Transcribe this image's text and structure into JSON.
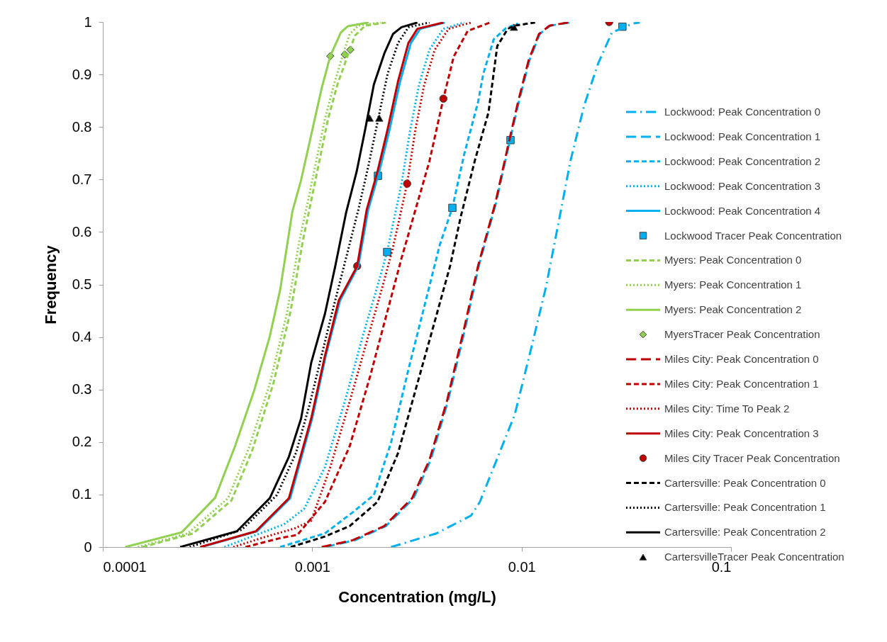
{
  "chart_data": {
    "type": "line",
    "xlabel": "Concentration (mg/L)",
    "ylabel": "Frequency",
    "log": "x",
    "xlim": [
      0.0001,
      0.1
    ],
    "xticks": [
      0.0001,
      0.001,
      0.01,
      0.1
    ],
    "ylim": [
      0,
      1
    ],
    "yticks": [
      0,
      0.1,
      0.2,
      0.3,
      0.4,
      0.5,
      0.6,
      0.7,
      0.8,
      0.9,
      1
    ],
    "grid": false,
    "legend": "right",
    "series": [
      {
        "name": "Lockwood: Peak Concentration 0",
        "line_style": "dashdot",
        "color": "#00b0f0",
        "x": [
          0.00238,
          0.00392,
          0.00574,
          0.00632,
          0.00736,
          0.00927,
          0.0112,
          0.0131,
          0.0152,
          0.0171,
          0.0199,
          0.0232,
          0.027,
          0.0297,
          0.034,
          0.0367
        ],
        "values": [
          0,
          0.026,
          0.06,
          0.086,
          0.152,
          0.252,
          0.384,
          0.497,
          0.629,
          0.735,
          0.841,
          0.921,
          0.98,
          0.987,
          0.997,
          0.999
        ]
      },
      {
        "name": "Lockwood: Peak Concentration 1",
        "line_style": "longdash",
        "color": "#00b0f0",
        "x": [
          0.00115,
          0.0016,
          0.00225,
          0.00305,
          0.00368,
          0.00445,
          0.00538,
          0.00625,
          0.00755,
          0.00865,
          0.0097,
          0.0109,
          0.0122,
          0.0137,
          0.0169
        ],
        "values": [
          0,
          0.013,
          0.04,
          0.093,
          0.166,
          0.278,
          0.417,
          0.536,
          0.656,
          0.762,
          0.848,
          0.927,
          0.977,
          0.993,
          0.999
        ]
      },
      {
        "name": "Lockwood: Peak Concentration 2",
        "line_style": "dashed",
        "color": "#00b0f0",
        "x": [
          0.000703,
          0.00115,
          0.00156,
          0.00197,
          0.00238,
          0.00288,
          0.00349,
          0.00407,
          0.00467,
          0.00532,
          0.0062,
          0.00656,
          0.00736,
          0.00841,
          0.00962
        ],
        "values": [
          0,
          0.026,
          0.066,
          0.099,
          0.199,
          0.338,
          0.47,
          0.576,
          0.646,
          0.748,
          0.848,
          0.901,
          0.967,
          0.988,
          0.997
        ]
      },
      {
        "name": "Lockwood: Peak Concentration 3",
        "line_style": "dotted",
        "color": "#00b0f0",
        "x": [
          0.000381,
          0.000538,
          0.000731,
          0.000916,
          0.00115,
          0.00145,
          0.00175,
          0.00205,
          0.00228,
          0.00267,
          0.00294,
          0.00324,
          0.00363,
          0.00423,
          0.00532
        ],
        "values": [
          0,
          0.023,
          0.043,
          0.073,
          0.152,
          0.285,
          0.404,
          0.497,
          0.562,
          0.692,
          0.795,
          0.881,
          0.947,
          0.987,
          0.999
        ]
      },
      {
        "name": "Lockwood: Peak Concentration 4",
        "line_style": "solid",
        "color": "#00b0f0",
        "x": [
          0.000295,
          0.000545,
          0.000785,
          0.001,
          0.00116,
          0.00136,
          0.00166,
          0.00185,
          0.00209,
          0.00234,
          0.00263,
          0.00296,
          0.00328,
          0.0043
        ],
        "values": [
          0,
          0.03,
          0.093,
          0.245,
          0.364,
          0.47,
          0.535,
          0.642,
          0.715,
          0.795,
          0.887,
          0.96,
          0.987,
          0.999
        ]
      },
      {
        "name": "Lockwood Tracer Peak Concentration",
        "type": "scatter",
        "marker": "square",
        "color": "#00b0f0",
        "x": [
          0.00206,
          0.00228,
          0.00467,
          0.00885,
          0.0303
        ],
        "values": [
          0.707,
          0.562,
          0.646,
          0.775,
          0.991
        ]
      },
      {
        "name": "Myers: Peak Concentration 0",
        "line_style": "dashed",
        "color": "#92d050",
        "x": [
          0.000155,
          0.00027,
          0.000412,
          0.000518,
          0.000652,
          0.000789,
          0.000902,
          0.001,
          0.00119,
          0.00132,
          0.00149,
          0.0016,
          0.00179,
          0.00225
        ],
        "values": [
          0,
          0.026,
          0.089,
          0.185,
          0.311,
          0.45,
          0.583,
          0.669,
          0.815,
          0.881,
          0.94,
          0.974,
          0.993,
          0.999
        ]
      },
      {
        "name": "Myers: Peak Concentration 1",
        "line_style": "dotted",
        "color": "#92d050",
        "x": [
          0.000147,
          0.000255,
          0.000396,
          0.000499,
          0.000627,
          0.000759,
          0.000868,
          0.000973,
          0.00115,
          0.00127,
          0.0014,
          0.00151,
          0.00166,
          0.00212
        ],
        "values": [
          0,
          0.026,
          0.093,
          0.189,
          0.311,
          0.447,
          0.583,
          0.675,
          0.815,
          0.881,
          0.937,
          0.977,
          0.993,
          0.999
        ]
      },
      {
        "name": "Myers: Peak Concentration 2",
        "line_style": "solid",
        "color": "#92d050",
        "x": [
          0.000128,
          0.000238,
          0.000344,
          0.000428,
          0.000528,
          0.000627,
          0.000703,
          0.000804,
          0.000885,
          0.000993,
          0.00111,
          0.00122,
          0.00137,
          0.00148,
          0.00186
        ],
        "values": [
          0,
          0.028,
          0.094,
          0.192,
          0.298,
          0.401,
          0.49,
          0.639,
          0.699,
          0.788,
          0.874,
          0.935,
          0.98,
          0.992,
          0.999
        ]
      },
      {
        "name": "MyersTracer Peak Concentration",
        "type": "scatter",
        "marker": "diamond",
        "color": "#92d050",
        "x": [
          0.00122,
          0.00143,
          0.00152
        ],
        "values": [
          0.935,
          0.938,
          0.947
        ]
      },
      {
        "name": "Miles City: Peak Concentration 0",
        "line_style": "longdash",
        "color": "#c00000",
        "x": [
          0.00111,
          0.00156,
          0.00221,
          0.003,
          0.00363,
          0.0044,
          0.00532,
          0.0062,
          0.0075,
          0.00859,
          0.00962,
          0.0108,
          0.0121,
          0.0136,
          0.0167
        ],
        "values": [
          0,
          0.013,
          0.04,
          0.093,
          0.166,
          0.278,
          0.417,
          0.536,
          0.656,
          0.762,
          0.848,
          0.927,
          0.977,
          0.993,
          0.999
        ]
      },
      {
        "name": "Miles City: Peak Concentration 1",
        "line_style": "dashed",
        "color": "#c00000",
        "x": [
          0.00048,
          0.000703,
          0.000849,
          0.00115,
          0.00151,
          0.00189,
          0.00229,
          0.00267,
          0.00311,
          0.00363,
          0.00423,
          0.00474,
          0.00553,
          0.00708
        ],
        "values": [
          0,
          0.017,
          0.023,
          0.086,
          0.192,
          0.325,
          0.45,
          0.55,
          0.642,
          0.735,
          0.854,
          0.934,
          0.983,
          0.999
        ]
      },
      {
        "name": "Miles City: Time To Peak 2",
        "line_style": "dotted",
        "color": "#c00000",
        "x": [
          0.00042,
          0.000604,
          0.000819,
          0.000989,
          0.00122,
          0.00153,
          0.00186,
          0.00217,
          0.00243,
          0.00284,
          0.00311,
          0.00343,
          0.00385,
          0.00448,
          0.00574
        ],
        "values": [
          0,
          0.02,
          0.035,
          0.05,
          0.152,
          0.285,
          0.404,
          0.497,
          0.57,
          0.692,
          0.795,
          0.881,
          0.947,
          0.987,
          0.999
        ]
      },
      {
        "name": "Miles City: Peak Concentration 3",
        "line_style": "solid",
        "color": "#c00000",
        "x": [
          0.000292,
          0.000538,
          0.000774,
          0.000989,
          0.00115,
          0.00134,
          0.00164,
          0.00182,
          0.00205,
          0.00229,
          0.00257,
          0.00288,
          0.00318,
          0.00423
        ],
        "values": [
          0,
          0.03,
          0.093,
          0.245,
          0.364,
          0.47,
          0.535,
          0.642,
          0.715,
          0.795,
          0.887,
          0.96,
          0.987,
          0.999
        ]
      },
      {
        "name": "Miles City Tracer Peak Concentration",
        "type": "scatter",
        "marker": "circle",
        "color": "#c00000",
        "x": [
          0.00164,
          0.00284,
          0.00423,
          0.0262
        ],
        "values": [
          0.535,
          0.692,
          0.854,
          1
        ]
      },
      {
        "name": "Cartersville: Peak Concentration 0",
        "line_style": "dashed",
        "color": "#000000",
        "x": [
          0.000789,
          0.00115,
          0.00151,
          0.00205,
          0.00257,
          0.00311,
          0.00377,
          0.00456,
          0.00512,
          0.00597,
          0.00695,
          0.00765,
          0.00859,
          0.00927,
          0.0116
        ],
        "values": [
          0,
          0.02,
          0.04,
          0.086,
          0.179,
          0.298,
          0.417,
          0.536,
          0.629,
          0.735,
          0.828,
          0.954,
          0.987,
          0.993,
          0.999
        ]
      },
      {
        "name": "Cartersville: Peak Concentration 1",
        "line_style": "dotted",
        "color": "#000000",
        "x": [
          0.00026,
          0.000461,
          0.000678,
          0.000836,
          0.000973,
          0.00124,
          0.00145,
          0.00166,
          0.00186,
          0.00208,
          0.00229,
          0.00257,
          0.00288,
          0.00363
        ],
        "values": [
          0,
          0.033,
          0.099,
          0.179,
          0.272,
          0.444,
          0.55,
          0.642,
          0.728,
          0.821,
          0.901,
          0.96,
          0.99,
          0.999
        ]
      },
      {
        "name": "Cartersville: Peak Concentration 2",
        "line_style": "solid",
        "color": "#000000",
        "x": [
          0.000234,
          0.000437,
          0.000627,
          0.000774,
          0.000885,
          0.000989,
          0.00115,
          0.00129,
          0.00145,
          0.00163,
          0.00179,
          0.00197,
          0.00221,
          0.00243,
          0.00267,
          0.00318
        ],
        "values": [
          0,
          0.03,
          0.093,
          0.172,
          0.245,
          0.351,
          0.444,
          0.536,
          0.636,
          0.715,
          0.795,
          0.881,
          0.94,
          0.977,
          0.99,
          0.999
        ]
      },
      {
        "name": "CartersvilleTracer  Peak Concentration",
        "type": "scatter",
        "marker": "triangle",
        "color": "#000000",
        "x": [
          0.00188,
          0.00209,
          0.00919
        ],
        "values": [
          0.817,
          0.817,
          0.99
        ]
      }
    ]
  }
}
